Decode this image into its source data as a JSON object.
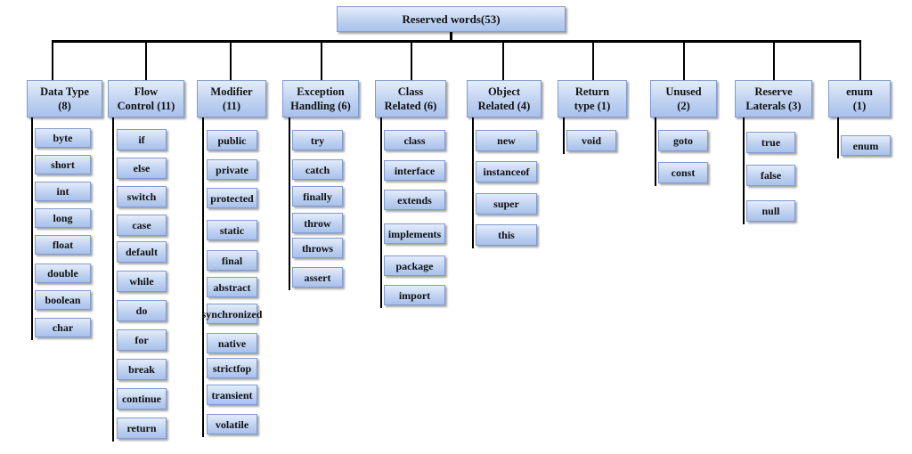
{
  "root": {
    "label": "Reserved words(53)"
  },
  "categories": [
    {
      "label": "Data Type\n(8)",
      "items": [
        "byte",
        "short",
        "int",
        "long",
        "float",
        "double",
        "boolean",
        "char"
      ]
    },
    {
      "label": "Flow\nControl (11)",
      "items": [
        "if",
        "else",
        "switch",
        "case",
        "default",
        "while",
        "do",
        "for",
        "break",
        "continue",
        "return"
      ]
    },
    {
      "label": "Modifier\n(11)",
      "items": [
        "public",
        "private",
        "protected",
        "static",
        "final",
        "abstract",
        "synchronized",
        "native",
        "strictfop",
        "transient",
        "volatile"
      ]
    },
    {
      "label": "Exception\nHandling (6)",
      "items": [
        "try",
        "catch",
        "finally",
        "throw",
        "throws",
        "assert"
      ]
    },
    {
      "label": "Class\nRelated (6)",
      "items": [
        "class",
        "interface",
        "extends",
        "implements",
        "package",
        "import"
      ]
    },
    {
      "label": "Object\nRelated (4)",
      "items": [
        "new",
        "instanceof",
        "super",
        "this"
      ]
    },
    {
      "label": "Return\ntype (1)",
      "items": [
        "void"
      ]
    },
    {
      "label": "Unused\n(2)",
      "items": [
        "goto",
        "const"
      ]
    },
    {
      "label": "Reserve\nLaterals (3)",
      "items": [
        "true",
        "false",
        "null"
      ]
    },
    {
      "label": "enum\n(1)",
      "items": [
        "enum"
      ]
    }
  ]
}
